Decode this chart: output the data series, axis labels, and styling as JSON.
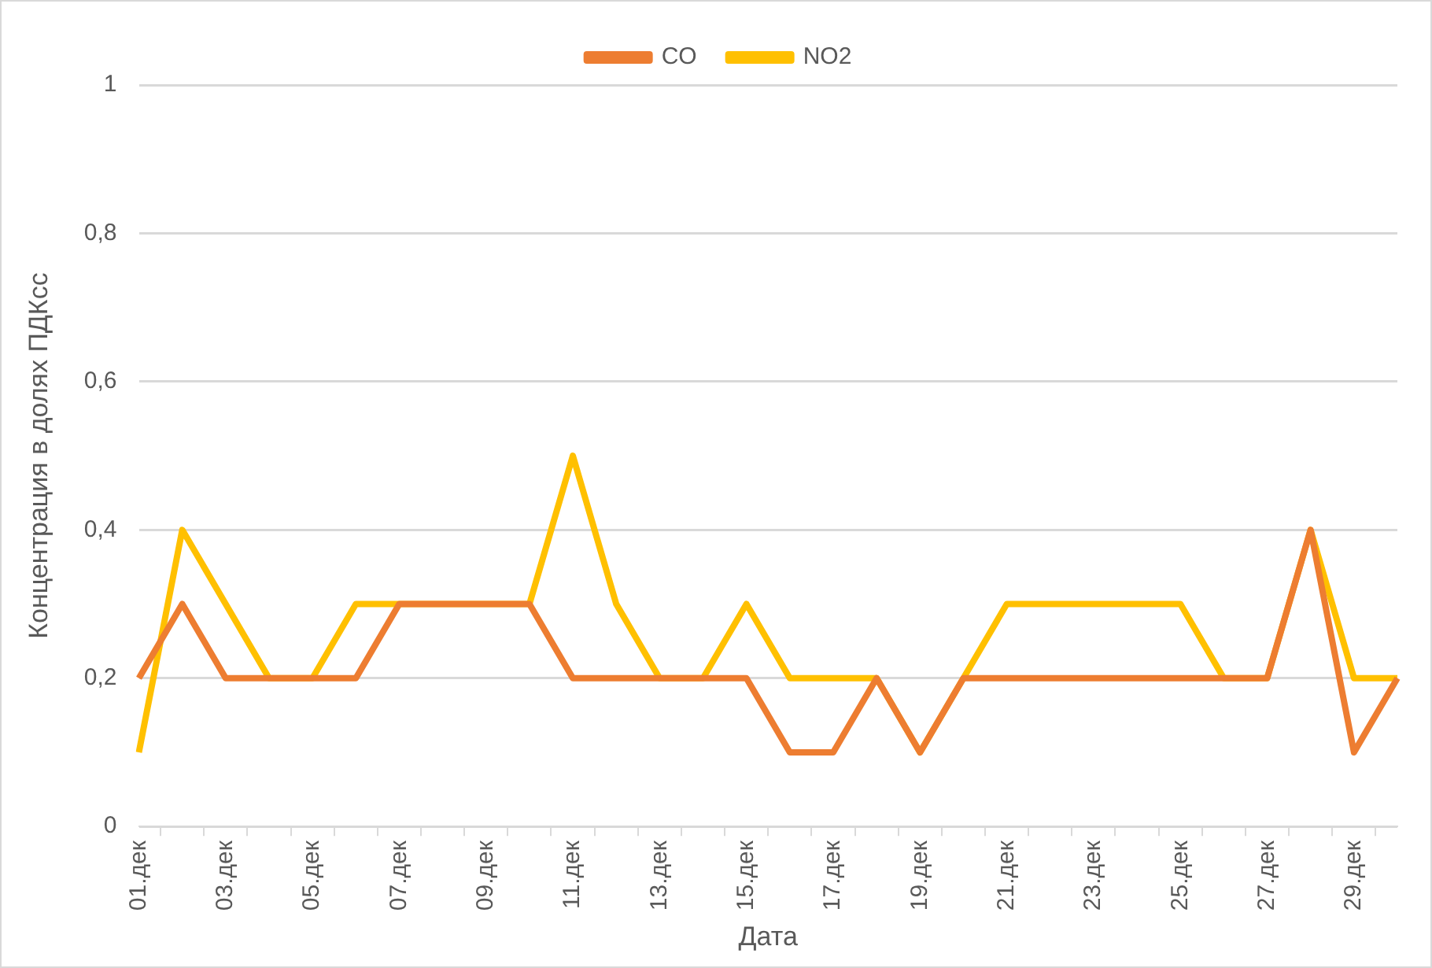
{
  "chart_data": {
    "type": "line",
    "xlabel": "Дата",
    "ylabel": "Концентрация в долях ПДКсс",
    "categories": [
      "01.дек",
      null,
      "03.дек",
      null,
      "05.дек",
      null,
      "07.дек",
      null,
      "09.дек",
      null,
      "11.дек",
      null,
      "13.дек",
      null,
      "15.дек",
      null,
      "17.дек",
      null,
      "19.дек",
      null,
      "21.дек",
      null,
      "23.дек",
      null,
      "25.дек",
      null,
      "27.дек",
      null,
      "29.дек",
      null
    ],
    "series": [
      {
        "name": "CO",
        "color": "#ed7d31",
        "values": [
          0.2,
          0.3,
          0.2,
          0.2,
          0.2,
          0.2,
          0.3,
          0.3,
          0.3,
          0.3,
          0.2,
          0.2,
          0.2,
          0.2,
          0.2,
          0.1,
          0.1,
          0.2,
          0.1,
          0.2,
          0.2,
          0.2,
          0.2,
          0.2,
          0.2,
          0.2,
          0.2,
          0.4,
          0.1,
          0.2
        ]
      },
      {
        "name": "NO2",
        "color": "#ffc000",
        "values": [
          0.1,
          0.4,
          0.3,
          0.2,
          0.2,
          0.3,
          0.3,
          0.3,
          0.3,
          0.3,
          0.5,
          0.3,
          0.2,
          0.2,
          0.3,
          0.2,
          0.2,
          0.2,
          0.1,
          0.2,
          0.3,
          0.3,
          0.3,
          0.3,
          0.3,
          0.2,
          0.2,
          0.4,
          0.2,
          0.2
        ]
      }
    ],
    "ylim": [
      0,
      1
    ],
    "yticks": [
      0,
      {
        "value": 0.2,
        "label": "0,2"
      },
      {
        "value": 0.4,
        "label": "0,4"
      },
      {
        "value": 0.6,
        "label": "0,6"
      },
      {
        "value": 0.8,
        "label": "0,8"
      },
      1
    ],
    "grid": "y",
    "legend": "top",
    "marker": "none",
    "line_style": "solid"
  }
}
